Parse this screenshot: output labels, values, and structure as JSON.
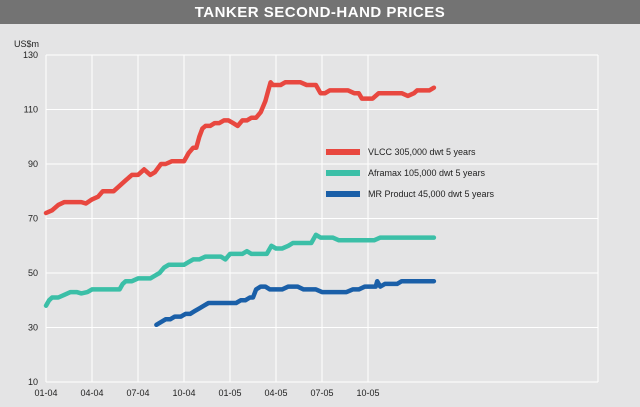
{
  "chart_data": {
    "type": "line",
    "title": "TANKER SECOND-HAND PRICES",
    "ylabel": "US$m",
    "xlabel": "",
    "ylim": [
      10,
      130
    ],
    "yticks": [
      10,
      30,
      50,
      70,
      90,
      110,
      130
    ],
    "xlim": [
      0,
      36
    ],
    "xticks": [
      {
        "pos": 0,
        "label": "01-04"
      },
      {
        "pos": 3,
        "label": "04-04"
      },
      {
        "pos": 6,
        "label": "07-04"
      },
      {
        "pos": 9,
        "label": "10-04"
      },
      {
        "pos": 12,
        "label": "01-05"
      },
      {
        "pos": 15,
        "label": "04-05"
      },
      {
        "pos": 18,
        "label": "07-05"
      },
      {
        "pos": 21,
        "label": "10-05"
      }
    ],
    "grid": true,
    "legend_position": "center-right",
    "series": [
      {
        "name": "VLCC 305,000 dwt 5 years",
        "color": "#e8473f",
        "points": [
          [
            0,
            72
          ],
          [
            0.4,
            73
          ],
          [
            0.8,
            75
          ],
          [
            1.2,
            76
          ],
          [
            1.6,
            76
          ],
          [
            2.0,
            76
          ],
          [
            2.3,
            76
          ],
          [
            2.6,
            75.5
          ],
          [
            3.0,
            77
          ],
          [
            3.4,
            78
          ],
          [
            3.7,
            80
          ],
          [
            4.0,
            80
          ],
          [
            4.4,
            80
          ],
          [
            4.8,
            82
          ],
          [
            5.2,
            84
          ],
          [
            5.6,
            86
          ],
          [
            6.0,
            86
          ],
          [
            6.4,
            88
          ],
          [
            6.8,
            86
          ],
          [
            7.1,
            87
          ],
          [
            7.5,
            90
          ],
          [
            7.8,
            90
          ],
          [
            8.2,
            91
          ],
          [
            8.6,
            91
          ],
          [
            9.0,
            91
          ],
          [
            9.3,
            94
          ],
          [
            9.6,
            96
          ],
          [
            9.8,
            96
          ],
          [
            10.0,
            100
          ],
          [
            10.2,
            103
          ],
          [
            10.4,
            104
          ],
          [
            10.7,
            104
          ],
          [
            11.0,
            105
          ],
          [
            11.3,
            105
          ],
          [
            11.6,
            106
          ],
          [
            11.9,
            106
          ],
          [
            12.2,
            105
          ],
          [
            12.5,
            104
          ],
          [
            12.8,
            106
          ],
          [
            13.1,
            106
          ],
          [
            13.4,
            107
          ],
          [
            13.7,
            107
          ],
          [
            14.0,
            109
          ],
          [
            14.3,
            113
          ],
          [
            14.5,
            117
          ],
          [
            14.65,
            120
          ],
          [
            14.8,
            119
          ],
          [
            15.0,
            119
          ],
          [
            15.3,
            119
          ],
          [
            15.6,
            120
          ],
          [
            15.9,
            120
          ],
          [
            16.2,
            120
          ],
          [
            16.6,
            120
          ],
          [
            17.0,
            119
          ],
          [
            17.3,
            119
          ],
          [
            17.6,
            119
          ],
          [
            17.9,
            116
          ],
          [
            18.2,
            116
          ],
          [
            18.5,
            117
          ],
          [
            18.9,
            117
          ],
          [
            19.3,
            117
          ],
          [
            19.7,
            117
          ],
          [
            20.1,
            116
          ],
          [
            20.4,
            116
          ],
          [
            20.6,
            114
          ],
          [
            21.0,
            114
          ],
          [
            21.3,
            114
          ],
          [
            21.7,
            116
          ],
          [
            22.0,
            116
          ],
          [
            22.4,
            116
          ],
          [
            22.8,
            116
          ],
          [
            23.2,
            116
          ],
          [
            23.6,
            115
          ],
          [
            24.0,
            116
          ],
          [
            24.2,
            117
          ],
          [
            24.6,
            117
          ],
          [
            25.0,
            117
          ],
          [
            25.3,
            118
          ]
        ]
      },
      {
        "name": "Aframax 105,000 dwt 5 years",
        "color": "#3bbfa7",
        "points": [
          [
            0,
            38
          ],
          [
            0.2,
            40
          ],
          [
            0.4,
            41
          ],
          [
            0.8,
            41
          ],
          [
            1.2,
            42
          ],
          [
            1.6,
            43
          ],
          [
            2.0,
            43
          ],
          [
            2.3,
            42.5
          ],
          [
            2.7,
            43
          ],
          [
            3.0,
            44
          ],
          [
            3.4,
            44
          ],
          [
            3.8,
            44
          ],
          [
            4.2,
            44
          ],
          [
            4.6,
            44
          ],
          [
            4.8,
            44
          ],
          [
            5.0,
            46
          ],
          [
            5.2,
            47
          ],
          [
            5.6,
            47
          ],
          [
            6.0,
            48
          ],
          [
            6.4,
            48
          ],
          [
            6.8,
            48
          ],
          [
            7.1,
            49
          ],
          [
            7.4,
            50
          ],
          [
            7.7,
            52
          ],
          [
            8.0,
            53
          ],
          [
            8.3,
            53
          ],
          [
            8.6,
            53
          ],
          [
            9.0,
            53
          ],
          [
            9.3,
            54
          ],
          [
            9.6,
            55
          ],
          [
            10.0,
            55
          ],
          [
            10.4,
            56
          ],
          [
            10.8,
            56
          ],
          [
            11.0,
            56
          ],
          [
            11.4,
            56
          ],
          [
            11.7,
            55
          ],
          [
            12.0,
            57
          ],
          [
            12.4,
            57
          ],
          [
            12.8,
            57
          ],
          [
            13.1,
            58
          ],
          [
            13.4,
            57
          ],
          [
            13.7,
            57
          ],
          [
            14.1,
            57
          ],
          [
            14.4,
            57
          ],
          [
            14.7,
            60
          ],
          [
            15.0,
            59
          ],
          [
            15.4,
            59
          ],
          [
            15.8,
            60
          ],
          [
            16.1,
            61
          ],
          [
            16.5,
            61
          ],
          [
            16.9,
            61
          ],
          [
            17.3,
            61
          ],
          [
            17.6,
            64
          ],
          [
            17.9,
            63
          ],
          [
            18.3,
            63
          ],
          [
            18.7,
            63
          ],
          [
            19.1,
            62
          ],
          [
            19.5,
            62
          ],
          [
            19.9,
            62
          ],
          [
            20.3,
            62
          ],
          [
            20.6,
            62
          ],
          [
            21.0,
            62
          ],
          [
            21.4,
            62
          ],
          [
            21.8,
            63
          ],
          [
            22.2,
            63
          ],
          [
            22.6,
            63
          ],
          [
            23.0,
            63
          ],
          [
            23.4,
            63
          ],
          [
            23.8,
            63
          ],
          [
            24.2,
            63
          ],
          [
            24.6,
            63
          ],
          [
            25.0,
            63
          ],
          [
            25.3,
            63
          ]
        ]
      },
      {
        "name": "MR Product 45,000 dwt 5 years",
        "color": "#1a5fa8",
        "points": [
          [
            7.2,
            31
          ],
          [
            7.5,
            32
          ],
          [
            7.8,
            33
          ],
          [
            8.1,
            33
          ],
          [
            8.4,
            34
          ],
          [
            8.8,
            34
          ],
          [
            9.1,
            35
          ],
          [
            9.4,
            35
          ],
          [
            9.7,
            36
          ],
          [
            10.0,
            37
          ],
          [
            10.3,
            38
          ],
          [
            10.6,
            39
          ],
          [
            11.0,
            39
          ],
          [
            11.4,
            39
          ],
          [
            11.8,
            39
          ],
          [
            12.1,
            39
          ],
          [
            12.4,
            39
          ],
          [
            12.7,
            40
          ],
          [
            13.0,
            40
          ],
          [
            13.3,
            41
          ],
          [
            13.5,
            41
          ],
          [
            13.7,
            44
          ],
          [
            14.0,
            45
          ],
          [
            14.3,
            45
          ],
          [
            14.6,
            44
          ],
          [
            15.0,
            44
          ],
          [
            15.4,
            44
          ],
          [
            15.8,
            45
          ],
          [
            16.1,
            45
          ],
          [
            16.4,
            45
          ],
          [
            16.8,
            44
          ],
          [
            17.2,
            44
          ],
          [
            17.6,
            44
          ],
          [
            18.0,
            43
          ],
          [
            18.4,
            43
          ],
          [
            18.8,
            43
          ],
          [
            19.2,
            43
          ],
          [
            19.6,
            43
          ],
          [
            20.0,
            44
          ],
          [
            20.4,
            44
          ],
          [
            20.8,
            45
          ],
          [
            21.2,
            45
          ],
          [
            21.5,
            45
          ],
          [
            21.6,
            47
          ],
          [
            21.8,
            45
          ],
          [
            22.1,
            46
          ],
          [
            22.5,
            46
          ],
          [
            22.9,
            46
          ],
          [
            23.2,
            47
          ],
          [
            23.6,
            47
          ],
          [
            24.0,
            47
          ],
          [
            24.4,
            47
          ],
          [
            24.8,
            47
          ],
          [
            25.3,
            47
          ]
        ]
      }
    ]
  }
}
